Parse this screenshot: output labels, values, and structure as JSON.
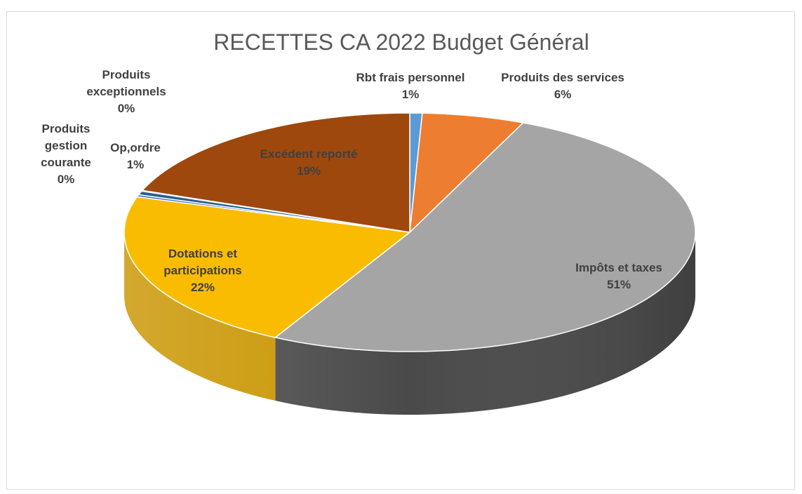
{
  "chart_data": {
    "type": "pie",
    "title": "RECETTES CA 2022 Budget Général",
    "slices": [
      {
        "label_lines": [
          "Rbt frais personnel"
        ],
        "percent_label": "1%",
        "value": 0.7,
        "color": "#5b9bd5",
        "side": "#3f78ad"
      },
      {
        "label_lines": [
          "Produits des services"
        ],
        "percent_label": "6%",
        "value": 5.8,
        "color": "#ed7d31",
        "side": "#b85a1c"
      },
      {
        "label_lines": [
          "Impôts et taxes"
        ],
        "percent_label": "51%",
        "value": 51.3,
        "color": "#a5a5a5",
        "side": "#4a4a4a"
      },
      {
        "label_lines": [
          "Dotations et",
          "participations"
        ],
        "percent_label": "22%",
        "value": 22.0,
        "color": "#f9bc00",
        "side": "#c99500"
      },
      {
        "label_lines": [
          "Produits",
          "gestion",
          "courante"
        ],
        "percent_label": "0%",
        "value": 0.3,
        "color": "#4472c4",
        "side": "#2c4f8f"
      },
      {
        "label_lines": [
          "Op,ordre"
        ],
        "percent_label": "1%",
        "value": 0.5,
        "color": "#255e91",
        "side": "#173d5e"
      },
      {
        "label_lines": [
          "Produits",
          "exceptionnels"
        ],
        "percent_label": "0%",
        "value": 0.1,
        "color": "#636363",
        "side": "#3a3a3a"
      },
      {
        "label_lines": [
          "Excédent reporté"
        ],
        "percent_label": "19%",
        "value": 19.3,
        "color": "#9e480e",
        "side": "#6e3009"
      }
    ]
  }
}
